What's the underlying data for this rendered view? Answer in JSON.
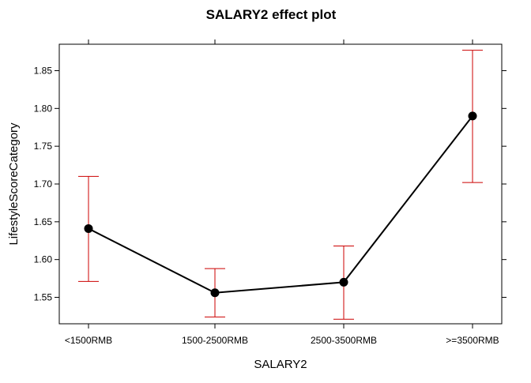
{
  "chart_data": {
    "type": "line",
    "title": "SALARY2 effect plot",
    "xlabel": "SALARY2",
    "ylabel": "LifestyleScoreCategory",
    "categories": [
      "<1500RMB",
      "1500-2500RMB",
      "2500-3500RMB",
      ">=3500RMB"
    ],
    "values": [
      1.641,
      1.556,
      1.57,
      1.79
    ],
    "lower": [
      1.571,
      1.524,
      1.521,
      1.702
    ],
    "upper": [
      1.71,
      1.588,
      1.618,
      1.877
    ],
    "ylim": [
      1.515,
      1.885
    ],
    "yticks": [
      1.55,
      1.6,
      1.65,
      1.7,
      1.75,
      1.8,
      1.85
    ],
    "ytick_labels": [
      "1.55",
      "1.60",
      "1.65",
      "1.70",
      "1.75",
      "1.80",
      "1.85"
    ],
    "grid": false,
    "legend": "none",
    "line_color": "#000000",
    "errorbar_color": "#cc0000"
  }
}
